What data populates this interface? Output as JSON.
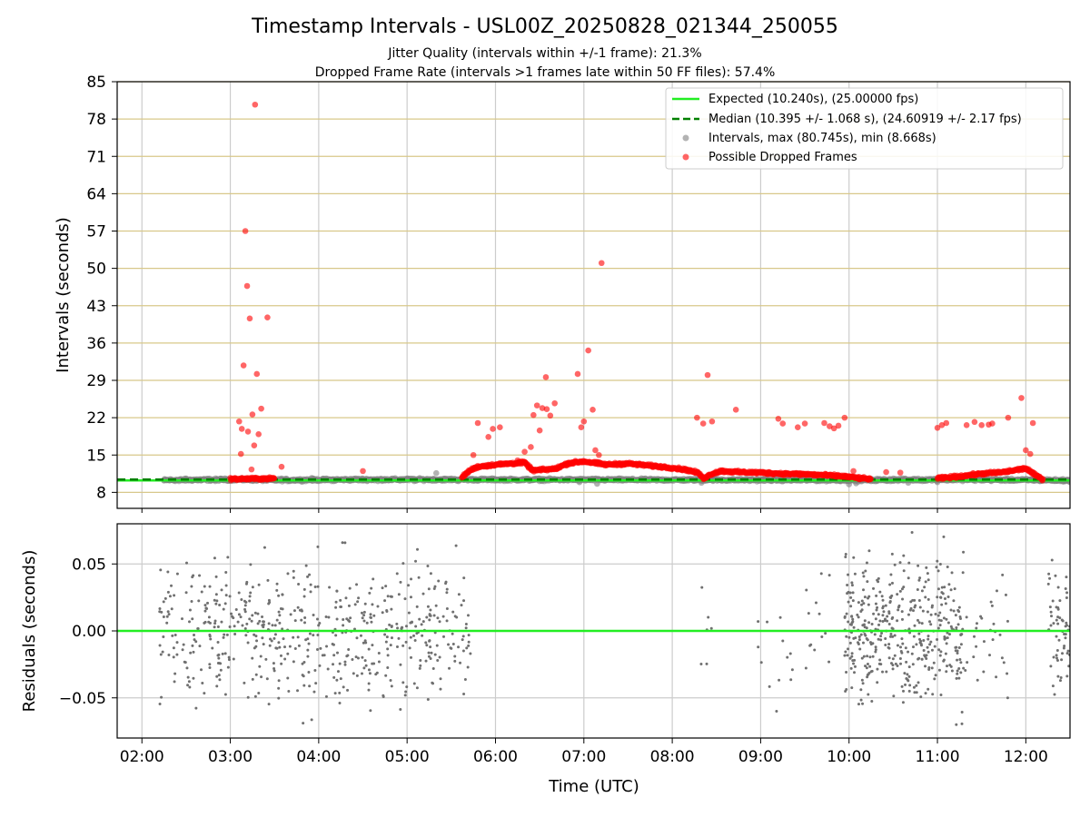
{
  "figure": {
    "title": "Timestamp Intervals - USL00Z_20250828_021344_250055",
    "subtitle_1": "Jitter Quality (intervals within +/-1 frame): 21.3%",
    "subtitle_2": "Dropped Frame Rate (intervals >1 frames late within 50 FF files): 57.4%"
  },
  "colors": {
    "expected": "#22ee22",
    "median": "#008000",
    "intervals": "#808080",
    "dropped": "#ff0000",
    "hgrid": "#d8c88a",
    "vgrid": "#cccccc",
    "residual_points": "#707070",
    "residual_zero": "#22ee22"
  },
  "chart_data": [
    {
      "type": "scatter",
      "ylabel": "Intervals (seconds)",
      "ylim": [
        5,
        85
      ],
      "yticks": [
        8,
        15,
        22,
        29,
        36,
        43,
        50,
        57,
        64,
        71,
        78,
        85
      ],
      "xlim_hours": [
        1.72,
        12.5
      ],
      "grid": true,
      "legend_position": "top-right",
      "expected_interval": 10.24,
      "median_interval": 10.395,
      "legend": {
        "expected": "Expected (10.240s), (25.00000 fps)",
        "median": "Median (10.395 +/- 1.068 s), (24.60919 +/- 2.17 fps)",
        "intervals": "Intervals, max (80.745s), min (8.668s)",
        "dropped": "Possible Dropped Frames"
      },
      "intervals_points": [
        [
          2.25,
          10.2
        ],
        [
          2.33,
          10.4
        ],
        [
          2.42,
          10.1
        ],
        [
          2.5,
          10.6
        ],
        [
          2.58,
          10.3
        ],
        [
          2.67,
          10.2
        ],
        [
          2.75,
          10.5
        ],
        [
          2.83,
          10.1
        ],
        [
          2.92,
          10.4
        ],
        [
          3.0,
          10.3
        ],
        [
          3.5,
          10.2
        ],
        [
          3.58,
          10.6
        ],
        [
          3.67,
          10.1
        ],
        [
          3.75,
          10.4
        ],
        [
          3.83,
          10.3
        ],
        [
          3.92,
          10.7
        ],
        [
          4.0,
          10.2
        ],
        [
          4.08,
          10.5
        ],
        [
          4.17,
          10.1
        ],
        [
          4.25,
          10.4
        ],
        [
          4.33,
          10.3
        ],
        [
          4.42,
          10.6
        ],
        [
          4.5,
          10.2
        ],
        [
          4.58,
          10.4
        ],
        [
          4.67,
          10.1
        ],
        [
          4.75,
          10.5
        ],
        [
          4.83,
          10.3
        ],
        [
          4.92,
          10.2
        ],
        [
          5.0,
          10.6
        ],
        [
          5.08,
          10.1
        ],
        [
          5.17,
          10.4
        ],
        [
          5.25,
          10.3
        ],
        [
          5.33,
          11.6
        ],
        [
          5.42,
          10.2
        ],
        [
          5.5,
          10.5
        ],
        [
          5.58,
          10.1
        ],
        [
          6.95,
          9.9
        ],
        [
          7.15,
          9.6
        ],
        [
          8.33,
          9.8
        ],
        [
          8.42,
          10.4
        ],
        [
          9.6,
          10.3
        ],
        [
          9.75,
          10.6
        ],
        [
          9.9,
          10.2
        ],
        [
          10.0,
          9.5
        ],
        [
          10.08,
          9.7
        ],
        [
          10.17,
          10.4
        ],
        [
          10.25,
          10.1
        ],
        [
          10.33,
          10.5
        ],
        [
          10.42,
          10.2
        ],
        [
          10.5,
          10.6
        ],
        [
          10.58,
          10.3
        ],
        [
          10.67,
          9.8
        ],
        [
          10.75,
          10.4
        ],
        [
          10.83,
          10.1
        ],
        [
          10.92,
          10.5
        ],
        [
          11.0,
          9.9
        ],
        [
          12.33,
          10.2
        ],
        [
          12.42,
          10.5
        ]
      ],
      "dropped_points": [
        [
          3.1,
          21.3
        ],
        [
          3.12,
          15.2
        ],
        [
          3.13,
          19.9
        ],
        [
          3.15,
          31.8
        ],
        [
          3.17,
          57.0
        ],
        [
          3.19,
          46.7
        ],
        [
          3.2,
          19.4
        ],
        [
          3.22,
          40.6
        ],
        [
          3.24,
          12.3
        ],
        [
          3.25,
          22.6
        ],
        [
          3.27,
          16.8
        ],
        [
          3.28,
          80.7
        ],
        [
          3.3,
          30.2
        ],
        [
          3.32,
          18.9
        ],
        [
          3.35,
          23.7
        ],
        [
          3.42,
          40.8
        ],
        [
          3.58,
          12.8
        ],
        [
          4.5,
          12.0
        ],
        [
          5.75,
          15.0
        ],
        [
          5.8,
          21.0
        ],
        [
          5.92,
          18.4
        ],
        [
          5.97,
          19.9
        ],
        [
          6.05,
          20.2
        ],
        [
          6.25,
          14.0
        ],
        [
          6.33,
          15.6
        ],
        [
          6.4,
          16.5
        ],
        [
          6.43,
          22.5
        ],
        [
          6.47,
          24.3
        ],
        [
          6.5,
          19.6
        ],
        [
          6.53,
          23.8
        ],
        [
          6.57,
          29.6
        ],
        [
          6.58,
          23.6
        ],
        [
          6.62,
          22.4
        ],
        [
          6.67,
          24.7
        ],
        [
          6.93,
          30.2
        ],
        [
          6.97,
          20.2
        ],
        [
          7.0,
          21.3
        ],
        [
          7.05,
          34.6
        ],
        [
          7.1,
          23.5
        ],
        [
          7.13,
          15.9
        ],
        [
          7.17,
          15.0
        ],
        [
          7.2,
          51.0
        ],
        [
          8.28,
          22.0
        ],
        [
          8.35,
          20.9
        ],
        [
          8.4,
          30.0
        ],
        [
          8.45,
          21.3
        ],
        [
          8.72,
          23.5
        ],
        [
          9.2,
          21.8
        ],
        [
          9.25,
          20.9
        ],
        [
          9.42,
          20.2
        ],
        [
          9.5,
          20.9
        ],
        [
          9.72,
          21.0
        ],
        [
          9.78,
          20.4
        ],
        [
          9.83,
          20.0
        ],
        [
          9.88,
          20.5
        ],
        [
          9.95,
          22.0
        ],
        [
          10.05,
          12.0
        ],
        [
          10.42,
          11.8
        ],
        [
          10.58,
          11.7
        ],
        [
          11.0,
          20.1
        ],
        [
          11.05,
          20.6
        ],
        [
          11.1,
          21.0
        ],
        [
          11.33,
          20.6
        ],
        [
          11.42,
          21.2
        ],
        [
          11.5,
          20.6
        ],
        [
          11.58,
          20.7
        ],
        [
          11.62,
          20.9
        ],
        [
          11.8,
          22.0
        ],
        [
          11.95,
          25.7
        ],
        [
          12.0,
          15.9
        ],
        [
          12.05,
          15.2
        ],
        [
          12.08,
          21.0
        ]
      ],
      "dropped_band": [
        [
          3.0,
          10.5
        ],
        [
          3.5,
          10.6
        ],
        [
          5.62,
          10.8
        ],
        [
          5.68,
          11.7
        ],
        [
          5.72,
          12.2
        ],
        [
          5.8,
          12.8
        ],
        [
          6.0,
          13.2
        ],
        [
          6.33,
          13.6
        ],
        [
          6.42,
          12.1
        ],
        [
          6.67,
          12.4
        ],
        [
          6.83,
          13.5
        ],
        [
          7.0,
          13.8
        ],
        [
          7.25,
          13.2
        ],
        [
          7.5,
          13.4
        ],
        [
          7.75,
          13.0
        ],
        [
          8.0,
          12.6
        ],
        [
          8.17,
          12.2
        ],
        [
          8.3,
          11.6
        ],
        [
          8.35,
          10.6
        ],
        [
          8.45,
          11.5
        ],
        [
          8.55,
          12.0
        ],
        [
          8.75,
          11.8
        ],
        [
          9.0,
          11.7
        ],
        [
          9.25,
          11.5
        ],
        [
          9.5,
          11.4
        ],
        [
          9.75,
          11.2
        ],
        [
          9.95,
          11.0
        ],
        [
          10.15,
          10.6
        ],
        [
          10.25,
          10.5
        ],
        [
          11.0,
          10.6
        ],
        [
          11.25,
          11.0
        ],
        [
          11.5,
          11.5
        ],
        [
          11.75,
          11.8
        ],
        [
          12.0,
          12.5
        ],
        [
          12.1,
          11.3
        ],
        [
          12.2,
          10.4
        ]
      ],
      "gray_band": [
        [
          2.25,
          10.3
        ],
        [
          3.0,
          10.4
        ],
        [
          3.5,
          10.3
        ],
        [
          4.5,
          10.4
        ],
        [
          5.62,
          10.4
        ],
        [
          10.1,
          10.3
        ],
        [
          11.0,
          10.4
        ],
        [
          12.25,
          10.3
        ],
        [
          12.5,
          10.2
        ]
      ]
    },
    {
      "type": "scatter",
      "xlabel": "Time (UTC)",
      "ylabel": "Residuals (seconds)",
      "ylim": [
        -0.08,
        0.08
      ],
      "yticks": [
        -0.05,
        0.0,
        0.05
      ],
      "ytick_labels": [
        "−0.05",
        "0.00",
        "0.05"
      ],
      "xlim_hours": [
        1.72,
        12.5
      ],
      "xticks": [
        "02:00",
        "03:00",
        "04:00",
        "05:00",
        "06:00",
        "07:00",
        "08:00",
        "09:00",
        "10:00",
        "11:00",
        "12:00"
      ],
      "xtick_hours": [
        2,
        3,
        4,
        5,
        6,
        7,
        8,
        9,
        10,
        11,
        12
      ],
      "grid": true,
      "zero_line": 0.0,
      "clusters": [
        {
          "x_range": [
            2.2,
            5.72
          ],
          "y_range": [
            -0.08,
            0.08
          ],
          "count": 560
        },
        {
          "x_range": [
            8.3,
            8.45
          ],
          "y_range": [
            -0.065,
            0.07
          ],
          "count": 6
        },
        {
          "x_range": [
            8.95,
            9.85
          ],
          "y_range": [
            -0.075,
            0.08
          ],
          "count": 26
        },
        {
          "x_range": [
            9.95,
            11.3
          ],
          "y_range": [
            -0.08,
            0.08
          ],
          "count": 420
        },
        {
          "x_range": [
            11.3,
            11.8
          ],
          "y_range": [
            -0.08,
            0.08
          ],
          "count": 30
        },
        {
          "x_range": [
            12.25,
            12.5
          ],
          "y_range": [
            -0.08,
            0.06
          ],
          "count": 60
        }
      ]
    }
  ]
}
